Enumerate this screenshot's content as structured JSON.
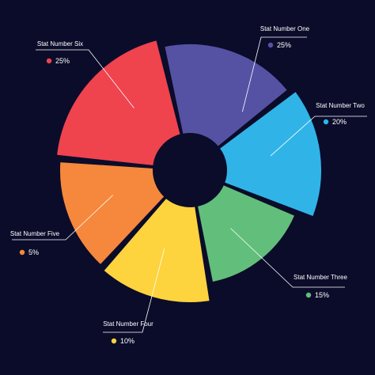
{
  "chart_data": {
    "type": "pie",
    "style": "donut with uneven slice lengths",
    "title": "",
    "background": "#0b0c2a",
    "slices": [
      {
        "label": "Stat Number One",
        "value": "25%",
        "color": "#5552a4"
      },
      {
        "label": "Stat Number Two",
        "value": "20%",
        "color": "#30b4e8"
      },
      {
        "label": "Stat Number Three",
        "value": "15%",
        "color": "#62bf7b"
      },
      {
        "label": "Stat Number Four",
        "value": "10%",
        "color": "#fdd33e"
      },
      {
        "label": "Stat Number Five",
        "value": "5%",
        "color": "#f5883c"
      },
      {
        "label": "Stat Number Six",
        "value": "25%",
        "color": "#ef434e"
      }
    ]
  }
}
